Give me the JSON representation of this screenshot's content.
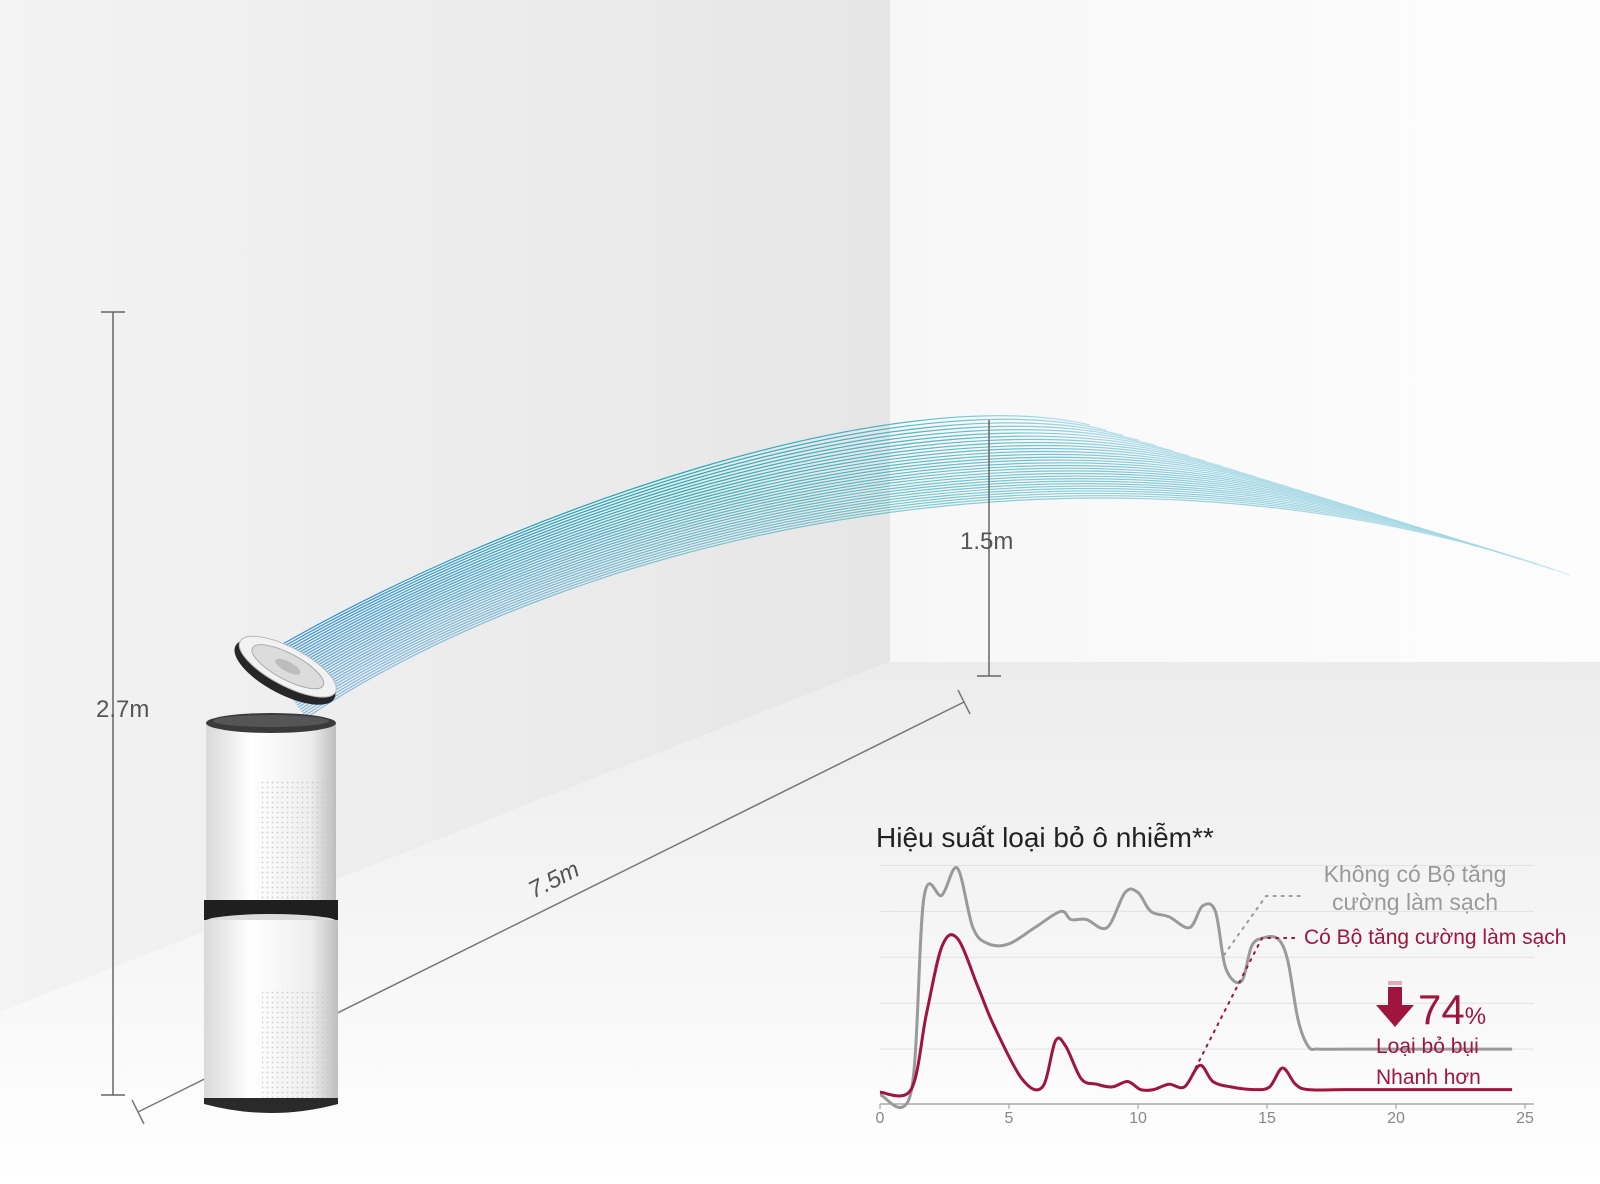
{
  "dimensions": {
    "room_height": "2.7m",
    "ceiling_gap": "1.5m",
    "room_length": "7.5m"
  },
  "chart": {
    "title": "Hiệu suất loại bỏ ô nhiễm**",
    "legend_without": "Không có Bộ tăng cường làm sạch",
    "legend_with": "Có Bộ tăng cường làm sạch",
    "stat_value": "74",
    "stat_unit": "%",
    "stat_line1": "Loại bỏ bụi",
    "stat_line2": "Nhanh hơn",
    "colors": {
      "without": "#9a9a9a",
      "with": "#a0153e"
    }
  },
  "chart_data": {
    "type": "line",
    "xlim": [
      0,
      25
    ],
    "x_ticks": [
      "0",
      "5",
      "10",
      "15",
      "20",
      "25"
    ],
    "series": [
      {
        "name": "Không có Bộ tăng cường làm sạch",
        "x": [
          0,
          1.2,
          1.7,
          2.4,
          3,
          3.6,
          4.2,
          5,
          6,
          7,
          7.4,
          8,
          8.8,
          9.5,
          10,
          10.5,
          11.2,
          12,
          12.5,
          13,
          13.4,
          14,
          14.4,
          14.8,
          15.4,
          15.8,
          16.2,
          16.6,
          17,
          18,
          20,
          22,
          24.5
        ],
        "y": [
          0,
          1,
          73,
          74,
          84,
          62,
          56,
          56,
          62,
          68,
          65,
          65,
          62,
          75,
          75,
          68,
          66,
          62,
          70,
          68,
          47,
          42,
          55,
          58,
          58,
          50,
          28,
          18,
          17,
          17,
          17,
          17,
          17
        ]
      },
      {
        "name": "Có Bộ tăng cường làm sạch",
        "x": [
          0,
          1.2,
          1.8,
          2.4,
          3,
          3.8,
          4.4,
          5.5,
          6.3,
          6.8,
          7.2,
          7.8,
          8.4,
          9,
          9.6,
          10.1,
          10.6,
          11.2,
          11.8,
          12.4,
          12.9,
          13.6,
          14.5,
          15.1,
          15.6,
          16.1,
          16.6,
          18,
          20,
          22,
          24.5
        ],
        "y": [
          1,
          2,
          30,
          55,
          58,
          40,
          26,
          6,
          3,
          20,
          18,
          6,
          4,
          3,
          5,
          2,
          2,
          4,
          3,
          11,
          5,
          3,
          2,
          3,
          10,
          4,
          2,
          2,
          2,
          2,
          2
        ]
      }
    ]
  }
}
